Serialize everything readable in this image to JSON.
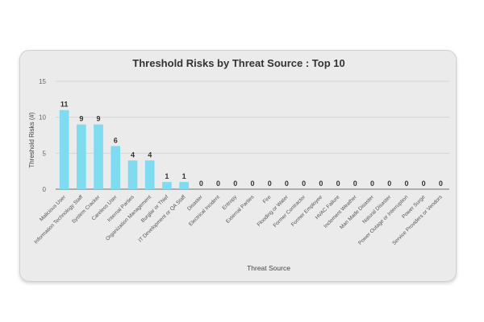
{
  "chart_data": {
    "type": "bar",
    "title": "Threshold Risks by Threat Source : Top 10",
    "xlabel": "Threat Source",
    "ylabel": "Threshold Risks (#)",
    "ylim": [
      0,
      15
    ],
    "yticks": [
      0,
      5,
      10,
      15
    ],
    "grid": true,
    "bar_color": "#7edcf0",
    "categories": [
      "Malicious User",
      "Information Technology Staff",
      "System Cracker",
      "Careless User",
      "Internal Parties",
      "Organization Management",
      "Burglar or Thief",
      "IT Development or QA Staff",
      "Disaster",
      "Electrical Incident",
      "Entropy",
      "External Parties",
      "Fire",
      "Flooding or Water",
      "Former Contractor",
      "Former Employee",
      "HVAC Failure",
      "Inclement Weather",
      "Man Made Disaster",
      "Natural Disaster",
      "Power Outage or Interruption",
      "Power Surge",
      "Service Providers or Vendors"
    ],
    "values": [
      11,
      9,
      9,
      6,
      4,
      4,
      1,
      1,
      0,
      0,
      0,
      0,
      0,
      0,
      0,
      0,
      0,
      0,
      0,
      0,
      0,
      0,
      0
    ]
  }
}
